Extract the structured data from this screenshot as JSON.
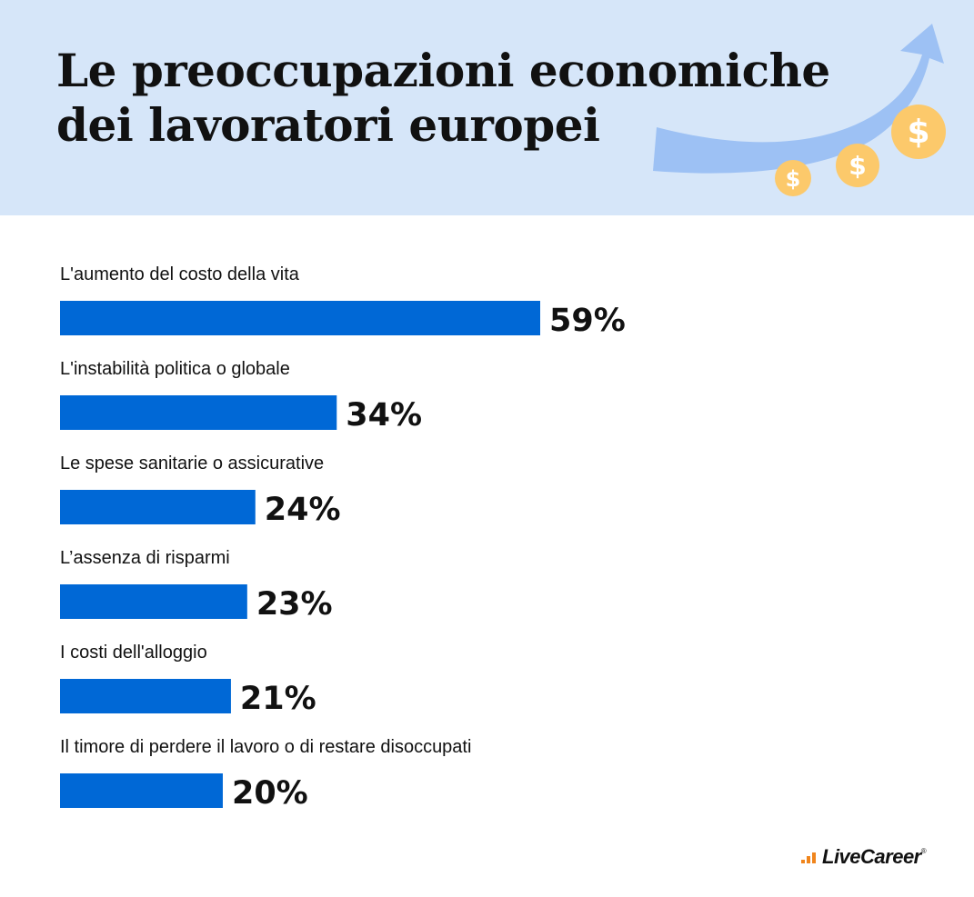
{
  "header": {
    "title_line1": "Le preoccupazioni economiche",
    "title_line2": "dei lavoratori europei"
  },
  "colors": {
    "header_bg": "#d6e6f9",
    "bar": "#0068d6",
    "arrow": "#9dc1f4",
    "coin": "#fcc96b",
    "coin_symbol": "#ffffff",
    "logo_accent": "#f0851c"
  },
  "icons": [
    "trend-arrow-icon",
    "dollar-coin-icon"
  ],
  "chart_data": {
    "type": "bar",
    "orientation": "horizontal",
    "categories": [
      "L'aumento del costo della vita",
      "L'instabilità politica o globale",
      "Le spese sanitarie o assicurative",
      "L’assenza di risparmi",
      "I costi dell'alloggio",
      "Il timore di perdere il lavoro o di restare disoccupati"
    ],
    "values": [
      59,
      34,
      24,
      23,
      21,
      20
    ],
    "value_labels": [
      "59%",
      "34%",
      "24%",
      "23%",
      "21%",
      "20%"
    ],
    "unit": "%",
    "xlim": [
      0,
      100
    ],
    "grid": false,
    "legend": "none"
  },
  "brand": {
    "logo_text": "LiveCareer",
    "trademark": "®"
  }
}
